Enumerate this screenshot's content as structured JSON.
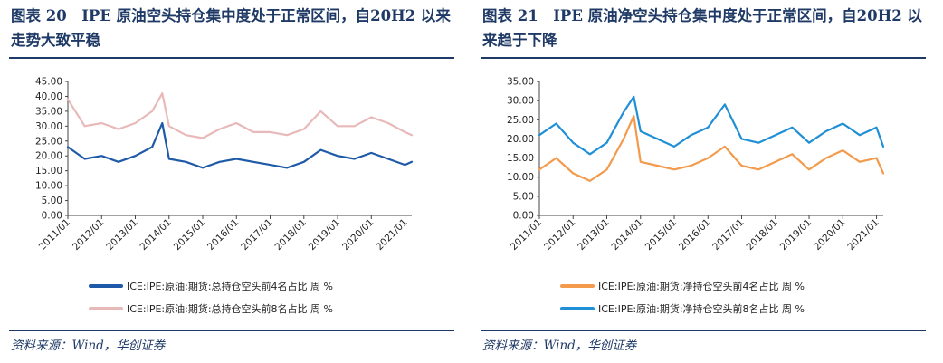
{
  "panels": [
    {
      "title": "图表 20　IPE 原油空头持仓集中度处于正常区间，自20H2 以来走势大致平稳",
      "source": "资料来源：Wind，华创证券"
    },
    {
      "title": "图表 21　IPE 原油净空头持仓集中度处于正常区间，自20H2 以来趋于下降",
      "source": "资料来源：Wind，华创证券"
    }
  ],
  "chart_data": [
    {
      "type": "line",
      "title": "",
      "ylim": [
        0,
        45
      ],
      "yticks": [
        "0.00",
        "5.00",
        "10.00",
        "15.00",
        "20.00",
        "25.00",
        "30.00",
        "35.00",
        "40.00",
        "45.00"
      ],
      "xticks": [
        "2011/01",
        "2012/01",
        "2013/01",
        "2014/01",
        "2015/01",
        "2016/01",
        "2017/01",
        "2018/01",
        "2019/01",
        "2020/01",
        "2021/01"
      ],
      "x": [
        2011.0,
        2011.5,
        2012.0,
        2012.5,
        2013.0,
        2013.5,
        2013.8,
        2014.0,
        2014.5,
        2015.0,
        2015.5,
        2016.0,
        2016.5,
        2017.0,
        2017.5,
        2018.0,
        2018.5,
        2019.0,
        2019.5,
        2020.0,
        2020.5,
        2021.0,
        2021.2
      ],
      "series": [
        {
          "name": "ICE:IPE:原油:期货:总持仓空头前4名占比 周 %",
          "color": "#1e5aa8",
          "values": [
            23,
            19,
            20,
            18,
            20,
            23,
            31,
            19,
            18,
            16,
            18,
            19,
            18,
            17,
            16,
            18,
            22,
            20,
            19,
            21,
            19,
            17,
            18
          ]
        },
        {
          "name": "ICE:IPE:原油:期货:总持仓空头前8名占比 周 %",
          "color": "#e8b9b9",
          "values": [
            39,
            30,
            31,
            29,
            31,
            35,
            41,
            30,
            27,
            26,
            29,
            31,
            28,
            28,
            27,
            29,
            35,
            30,
            30,
            33,
            31,
            28,
            27
          ]
        }
      ],
      "legend": "bottom"
    },
    {
      "type": "line",
      "title": "",
      "ylim": [
        0,
        35
      ],
      "yticks": [
        "0.00",
        "5.00",
        "10.00",
        "15.00",
        "20.00",
        "25.00",
        "30.00",
        "35.00"
      ],
      "xticks": [
        "2011/01",
        "2012/01",
        "2013/01",
        "2014/01",
        "2015/01",
        "2016/01",
        "2017/01",
        "2018/01",
        "2019/01",
        "2020/01",
        "2021/01"
      ],
      "x": [
        2011.0,
        2011.5,
        2012.0,
        2012.5,
        2013.0,
        2013.5,
        2013.8,
        2014.0,
        2014.5,
        2015.0,
        2015.5,
        2016.0,
        2016.5,
        2017.0,
        2017.5,
        2018.0,
        2018.5,
        2019.0,
        2019.5,
        2020.0,
        2020.5,
        2021.0,
        2021.2
      ],
      "series": [
        {
          "name": "ICE:IPE:原油:期货:净持仓空头前4名占比 周 %",
          "color": "#f39a4c",
          "values": [
            12,
            15,
            11,
            9,
            12,
            20,
            26,
            14,
            13,
            12,
            13,
            15,
            18,
            13,
            12,
            14,
            16,
            12,
            15,
            17,
            14,
            15,
            11
          ]
        },
        {
          "name": "ICE:IPE:原油:期货:净持仓空头前8名占比 周 %",
          "color": "#1f8fd6",
          "values": [
            21,
            24,
            19,
            16,
            19,
            27,
            31,
            22,
            20,
            18,
            21,
            23,
            29,
            20,
            19,
            21,
            23,
            19,
            22,
            24,
            21,
            23,
            18
          ]
        }
      ],
      "legend": "bottom"
    }
  ]
}
